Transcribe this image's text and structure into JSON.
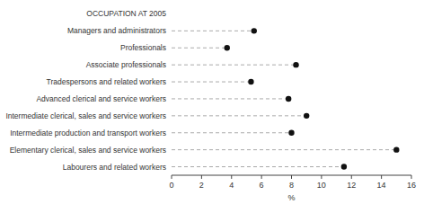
{
  "chart_data": {
    "type": "lollipop",
    "orientation": "horizontal",
    "categories": [
      "OCCUPATION AT 2005",
      "Managers and administrators",
      "Professionals",
      "Associate professionals",
      "Tradespersons and related workers",
      "Advanced clerical and service workers",
      "Intermediate clerical, sales and service workers",
      "Intermediate production and transport workers",
      "Elementary clerical, sales and service workers",
      "Labourers and related workers"
    ],
    "values": [
      null,
      5.5,
      3.7,
      8.3,
      5.3,
      7.8,
      9.0,
      8.0,
      15.0,
      11.5
    ],
    "xlim": [
      0,
      16
    ],
    "xticks": [
      0,
      2,
      4,
      6,
      8,
      10,
      12,
      14,
      16
    ],
    "xlabel": "%",
    "color": "#111111",
    "line_style": "dashed",
    "grid": false
  }
}
